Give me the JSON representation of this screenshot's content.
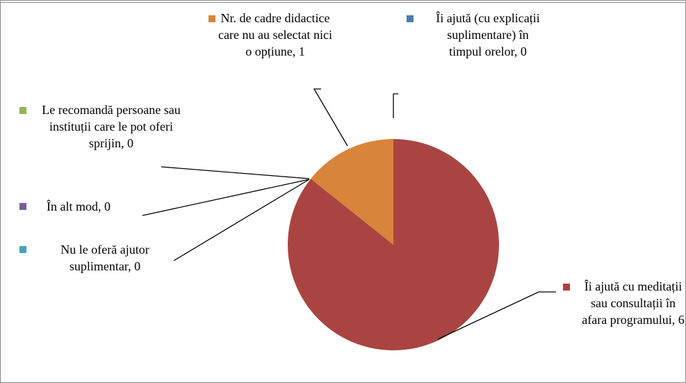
{
  "chart_data": {
    "type": "pie",
    "categories": [
      "Îi ajută (cu explicații suplimentare) în timpul orelor",
      "Îi ajută cu meditații sau consultații în afara programului",
      "Nu le oferă ajutor suplimentar",
      "În alt mod",
      "Le recomandă persoane sau instituții care le pot oferi sprijin",
      "Nr. de cadre didactice care nu au selectat nici o opțiune"
    ],
    "values": [
      0,
      6,
      0,
      0,
      0,
      1
    ],
    "colors": [
      "#4a7ab5",
      "#a94442",
      "#45a2bb",
      "#7a5f9c",
      "#92b357",
      "#d9843b"
    ]
  }
}
